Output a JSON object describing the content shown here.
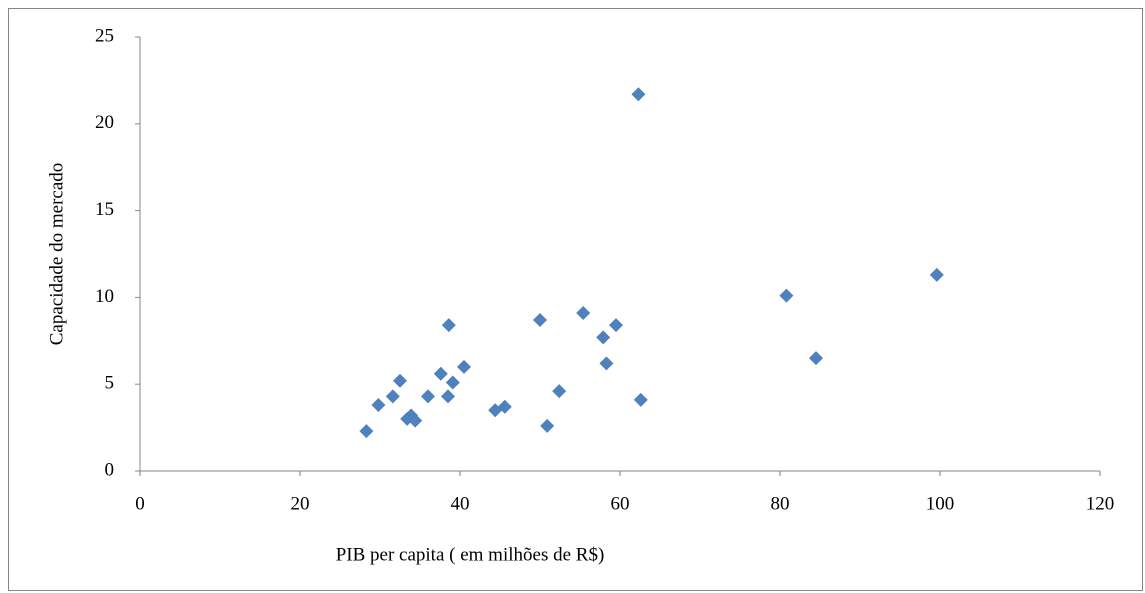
{
  "chart_data": {
    "type": "scatter",
    "x_label": "PIB per capita ( em milhões de R$)",
    "y_label": "Capacidade do mercado",
    "xlim": [
      0,
      120
    ],
    "xticks": [
      0,
      20,
      40,
      60,
      80,
      100,
      120
    ],
    "ylim": [
      0,
      25
    ],
    "yticks": [
      0,
      5,
      10,
      15,
      20,
      25
    ],
    "series": [
      {
        "color": "#4f81bd",
        "x": [
          28.3,
          29.8,
          31.6,
          32.5,
          33.4,
          33.9,
          34.4,
          36,
          37.6,
          38.6,
          38.5,
          39.1,
          40.5,
          44.4,
          45.6,
          50,
          50.9,
          52.4,
          55.4,
          57.9,
          58.3,
          59.5,
          62.3,
          62.6,
          80.8,
          84.5,
          99.6
        ],
        "values": [
          2.3,
          3.8,
          4.3,
          5.2,
          3.0,
          3.2,
          2.9,
          4.3,
          5.6,
          8.4,
          4.3,
          5.1,
          6.0,
          3.5,
          3.7,
          8.7,
          2.6,
          4.6,
          9.1,
          7.7,
          6.2,
          8.4,
          21.7,
          4.1,
          10.1,
          6.5,
          11.3
        ]
      }
    ]
  }
}
